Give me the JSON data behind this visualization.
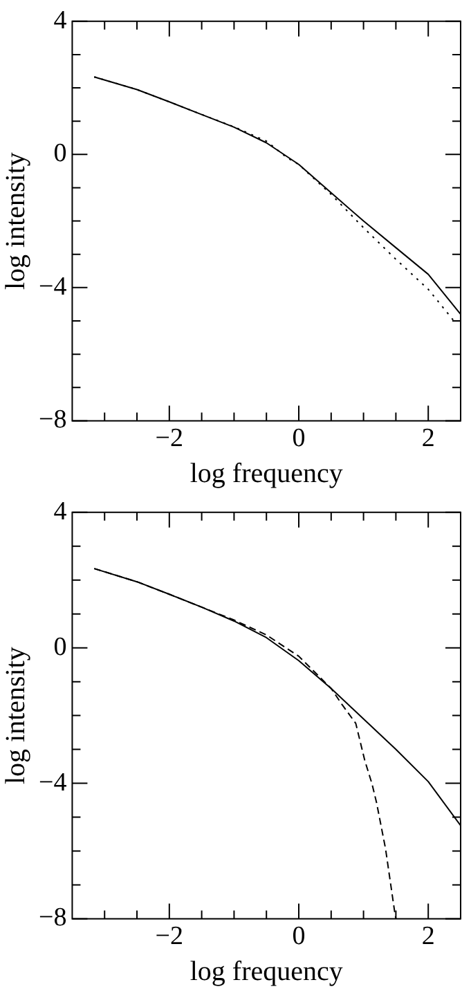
{
  "chart_data": [
    {
      "type": "line",
      "xlabel": "log frequency",
      "ylabel": "log intensity",
      "xlim": [
        -3.5,
        2.5
      ],
      "ylim": [
        -8,
        4
      ],
      "xticks": [
        {
          "value": -3,
          "label": null
        },
        {
          "value": -2.5,
          "label": null
        },
        -2,
        {
          "value": -1.5,
          "label": null
        },
        {
          "value": -1,
          "label": null
        },
        {
          "value": -0.5,
          "label": null
        },
        0,
        {
          "value": 0.5,
          "label": null
        },
        {
          "value": 1,
          "label": null
        },
        {
          "value": 1.5,
          "label": null
        },
        2
      ],
      "yticks": [
        -8,
        {
          "value": -7,
          "label": null
        },
        {
          "value": -6,
          "label": null
        },
        {
          "value": -5,
          "label": null
        },
        -4,
        {
          "value": -3,
          "label": null
        },
        {
          "value": -2,
          "label": null
        },
        {
          "value": -1,
          "label": null
        },
        0,
        {
          "value": 1,
          "label": null
        },
        {
          "value": 2,
          "label": null
        },
        {
          "value": 3,
          "label": null
        },
        4
      ],
      "grid": false,
      "legend": false,
      "marker": "none",
      "series": [
        {
          "color": "#000000",
          "line_style": "solid",
          "x": [
            -3.16,
            -2.5,
            -2,
            -1.5,
            -1,
            -0.5,
            0,
            0.5,
            1,
            1.5,
            2,
            2.5
          ],
          "values": [
            2.33,
            1.95,
            1.58,
            1.2,
            0.82,
            0.35,
            -0.3,
            -1.15,
            -2.0,
            -2.8,
            -3.6,
            -4.8
          ]
        },
        {
          "color": "#000000",
          "line_style": "dotted",
          "x": [
            -3.16,
            -2.5,
            -2,
            -1.5,
            -1,
            -0.5,
            -0.18,
            0,
            0.5,
            1,
            1.5,
            2,
            2.43
          ],
          "values": [
            2.33,
            1.95,
            1.58,
            1.2,
            0.83,
            0.4,
            -0.1,
            -0.3,
            -1.2,
            -2.2,
            -3.15,
            -4.05,
            -5.08
          ]
        }
      ]
    },
    {
      "type": "line",
      "xlabel": "log frequency",
      "ylabel": "log intensity",
      "xlim": [
        -3.5,
        2.5
      ],
      "ylim": [
        -8,
        4
      ],
      "xticks": [
        {
          "value": -3,
          "label": null
        },
        {
          "value": -2.5,
          "label": null
        },
        -2,
        {
          "value": -1.5,
          "label": null
        },
        {
          "value": -1,
          "label": null
        },
        {
          "value": -0.5,
          "label": null
        },
        0,
        {
          "value": 0.5,
          "label": null
        },
        {
          "value": 1,
          "label": null
        },
        {
          "value": 1.5,
          "label": null
        },
        2
      ],
      "yticks": [
        -8,
        {
          "value": -7,
          "label": null
        },
        {
          "value": -6,
          "label": null
        },
        {
          "value": -5,
          "label": null
        },
        -4,
        {
          "value": -3,
          "label": null
        },
        {
          "value": -2,
          "label": null
        },
        {
          "value": -1,
          "label": null
        },
        0,
        {
          "value": 1,
          "label": null
        },
        {
          "value": 2,
          "label": null
        },
        {
          "value": 3,
          "label": null
        },
        4
      ],
      "grid": false,
      "legend": false,
      "marker": "none",
      "series": [
        {
          "color": "#000000",
          "line_style": "solid",
          "x": [
            -3.16,
            -2.5,
            -2,
            -1.5,
            -1,
            -0.5,
            0,
            0.5,
            1,
            1.5,
            2,
            2.5
          ],
          "values": [
            2.34,
            1.95,
            1.58,
            1.2,
            0.79,
            0.3,
            -0.38,
            -1.2,
            -2.1,
            -3.0,
            -3.95,
            -5.25
          ]
        },
        {
          "color": "#000000",
          "line_style": "dashed",
          "x": [
            -3.16,
            -2.5,
            -2,
            -1.5,
            -1,
            -0.5,
            0,
            0.5,
            0.67,
            0.88,
            1.02,
            1.13,
            1.2,
            1.34,
            1.48,
            1.5
          ],
          "values": [
            2.34,
            1.95,
            1.58,
            1.2,
            0.82,
            0.38,
            -0.25,
            -1.2,
            -1.68,
            -2.23,
            -3.33,
            -4.01,
            -4.56,
            -5.93,
            -7.78,
            -8
          ]
        }
      ]
    }
  ]
}
